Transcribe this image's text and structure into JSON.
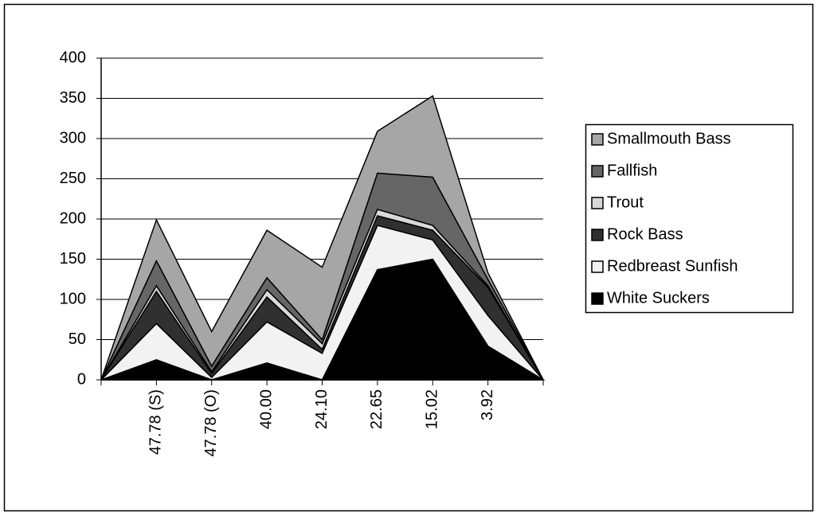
{
  "chart_data": {
    "type": "stacked_area",
    "categories": [
      null,
      "47.78 (S)",
      "47.78 (O)",
      "40.00",
      "24.10",
      "22.65",
      "15.02",
      "3.92",
      null
    ],
    "series": [
      {
        "name": "White Suckers",
        "color": "#000000",
        "values": [
          0,
          25,
          0,
          21,
          0,
          137,
          150,
          42,
          0
        ]
      },
      {
        "name": "Redbreast Sunfish",
        "color": "#f2f2f2",
        "values": [
          0,
          45,
          3,
          51,
          33,
          55,
          24,
          38,
          0
        ]
      },
      {
        "name": "Rock Bass",
        "color": "#303030",
        "values": [
          0,
          40,
          5,
          31,
          5,
          12,
          12,
          35,
          0
        ]
      },
      {
        "name": "Trout",
        "color": "#d9d9d9",
        "values": [
          0,
          7,
          2,
          9,
          7,
          8,
          6,
          2,
          0
        ]
      },
      {
        "name": "Fallfish",
        "color": "#666666",
        "values": [
          0,
          31,
          7,
          15,
          5,
          45,
          60,
          8,
          0
        ]
      },
      {
        "name": "Smallmouth Bass",
        "color": "#a6a6a6",
        "values": [
          0,
          51,
          43,
          59,
          90,
          52,
          101,
          8,
          0
        ]
      }
    ],
    "ylim": [
      0,
      400
    ],
    "yticks": [
      0,
      50,
      100,
      150,
      200,
      250,
      300,
      350,
      400
    ],
    "grid": true
  }
}
